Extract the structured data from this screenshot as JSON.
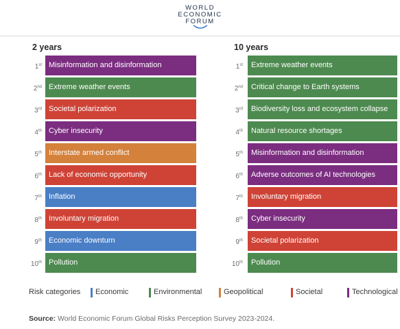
{
  "logo": {
    "line1": "WORLD",
    "line2": "ECONOMIC",
    "line3": "FORUM"
  },
  "colors": {
    "Economic": "#4a7fc6",
    "Environmental": "#4d8a4f",
    "Geopolitical": "#d4813b",
    "Societal": "#cf4336",
    "Technological": "#7b2d80"
  },
  "chart_data": {
    "type": "table",
    "columns": [
      {
        "title": "2 years",
        "rows": [
          {
            "rank": "1",
            "suffix": "st",
            "label": "Misinformation and disinformation",
            "category": "Technological"
          },
          {
            "rank": "2",
            "suffix": "nd",
            "label": "Extreme weather events",
            "category": "Environmental"
          },
          {
            "rank": "3",
            "suffix": "rd",
            "label": "Societal polarization",
            "category": "Societal"
          },
          {
            "rank": "4",
            "suffix": "th",
            "label": "Cyber insecurity",
            "category": "Technological"
          },
          {
            "rank": "5",
            "suffix": "th",
            "label": "Interstate armed conflict",
            "category": "Geopolitical"
          },
          {
            "rank": "6",
            "suffix": "th",
            "label": "Lack of economic opportunity",
            "category": "Societal"
          },
          {
            "rank": "7",
            "suffix": "th",
            "label": "Inflation",
            "category": "Economic"
          },
          {
            "rank": "8",
            "suffix": "th",
            "label": "Involuntary migration",
            "category": "Societal"
          },
          {
            "rank": "9",
            "suffix": "th",
            "label": "Economic downturn",
            "category": "Economic"
          },
          {
            "rank": "10",
            "suffix": "th",
            "label": "Pollution",
            "category": "Environmental"
          }
        ]
      },
      {
        "title": "10 years",
        "rows": [
          {
            "rank": "1",
            "suffix": "st",
            "label": "Extreme weather events",
            "category": "Environmental"
          },
          {
            "rank": "2",
            "suffix": "nd",
            "label": "Critical change to Earth systems",
            "category": "Environmental"
          },
          {
            "rank": "3",
            "suffix": "rd",
            "label": "Biodiversity loss and ecosystem collapse",
            "category": "Environmental"
          },
          {
            "rank": "4",
            "suffix": "th",
            "label": "Natural resource shortages",
            "category": "Environmental"
          },
          {
            "rank": "5",
            "suffix": "th",
            "label": "Misinformation and disinformation",
            "category": "Technological"
          },
          {
            "rank": "6",
            "suffix": "th",
            "label": "Adverse outcomes of AI technologies",
            "category": "Technological"
          },
          {
            "rank": "7",
            "suffix": "th",
            "label": "Involuntary migration",
            "category": "Societal"
          },
          {
            "rank": "8",
            "suffix": "th",
            "label": "Cyber insecurity",
            "category": "Technological"
          },
          {
            "rank": "9",
            "suffix": "th",
            "label": "Societal polarization",
            "category": "Societal"
          },
          {
            "rank": "10",
            "suffix": "th",
            "label": "Pollution",
            "category": "Environmental"
          }
        ]
      }
    ],
    "legend": {
      "title": "Risk categories",
      "items": [
        "Economic",
        "Environmental",
        "Geopolitical",
        "Societal",
        "Technological"
      ]
    }
  },
  "source": {
    "label": "Source:",
    "text": " World Economic Forum Global Risks Perception Survey 2023-2024."
  }
}
